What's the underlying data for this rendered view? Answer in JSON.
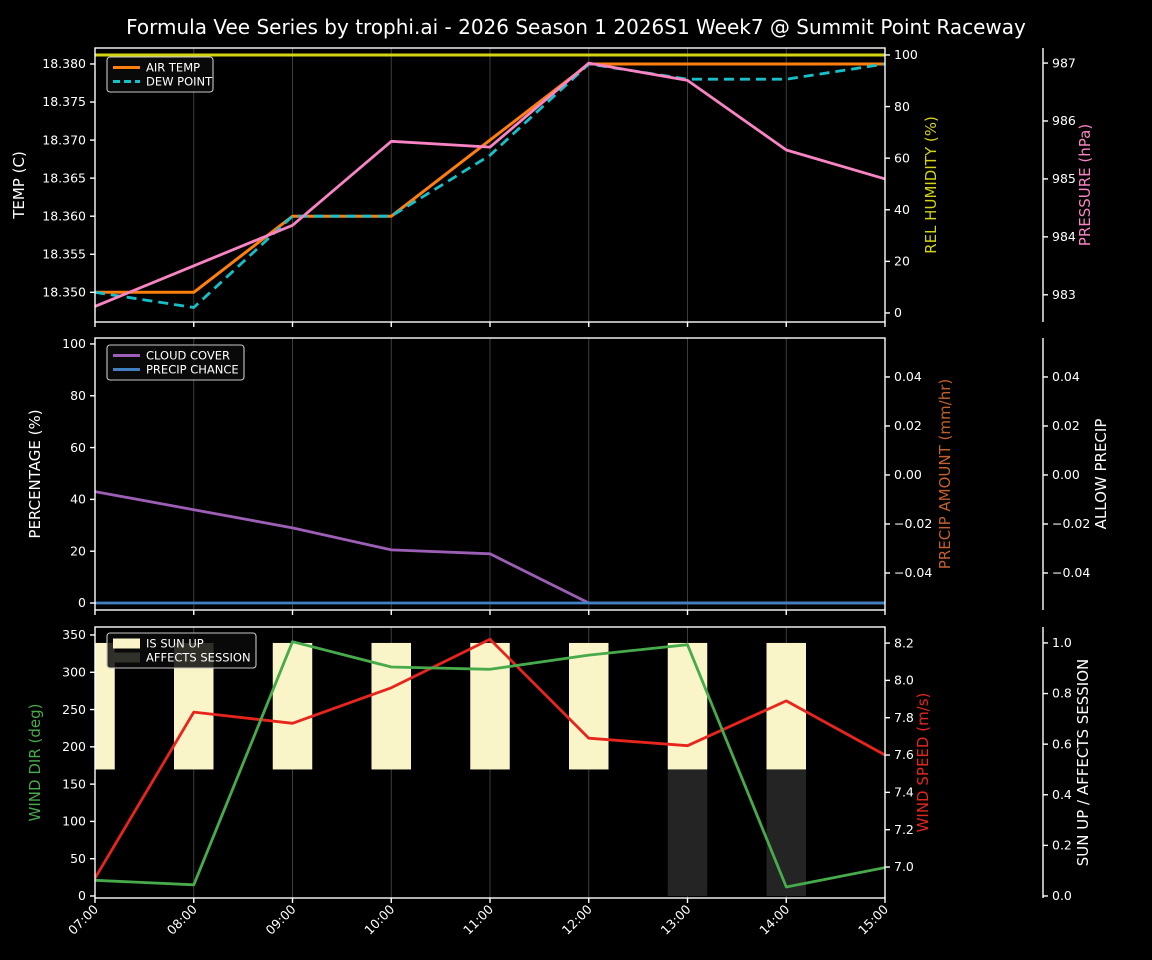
{
  "title": "Formula Vee Series by trophi.ai - 2026 Season 1 2026S1 Week7 @ Summit Point Raceway",
  "x": {
    "hours": [
      7,
      8,
      9,
      10,
      11,
      12,
      13,
      14,
      15
    ],
    "tick_labels": [
      "07:00",
      "08:00",
      "09:00",
      "10:00",
      "11:00",
      "12:00",
      "13:00",
      "14:00",
      "15:00"
    ]
  },
  "chart_data": [
    {
      "type": "line",
      "name": "temperature-panel",
      "left_axis": {
        "id": "temp",
        "label": "TEMP (C)",
        "color": "#ffffff",
        "range": [
          18.3461,
          18.3821
        ],
        "ticks": [
          {
            "v": 18.35,
            "t": "18.350"
          },
          {
            "v": 18.355,
            "t": "18.355"
          },
          {
            "v": 18.36,
            "t": "18.360"
          },
          {
            "v": 18.365,
            "t": "18.365"
          },
          {
            "v": 18.37,
            "t": "18.370"
          },
          {
            "v": 18.375,
            "t": "18.375"
          },
          {
            "v": 18.38,
            "t": "18.380"
          }
        ]
      },
      "right_axes": [
        {
          "id": "hum",
          "label": "REL HUMIDITY (%)",
          "color": "#d2d414",
          "range": [
            -3.5,
            102.7
          ],
          "ticks": [
            {
              "v": 0,
              "t": "0"
            },
            {
              "v": 20,
              "t": "20"
            },
            {
              "v": 40,
              "t": "40"
            },
            {
              "v": 60,
              "t": "60"
            },
            {
              "v": 80,
              "t": "80"
            },
            {
              "v": 100,
              "t": "100"
            }
          ]
        },
        {
          "id": "press",
          "label": "PRESSURE (hPa)",
          "color": "#f884c4",
          "range": [
            982.53,
            987.26
          ],
          "ticks": [
            {
              "v": 983,
              "t": "983"
            },
            {
              "v": 984,
              "t": "984"
            },
            {
              "v": 985,
              "t": "985"
            },
            {
              "v": 986,
              "t": "986"
            },
            {
              "v": 987,
              "t": "987"
            }
          ]
        }
      ],
      "legend": [
        {
          "label": "AIR TEMP",
          "color": "#ff7f0e",
          "kind": "line"
        },
        {
          "label": "DEW POINT",
          "color": "#16c0c9",
          "kind": "dash"
        }
      ],
      "series": [
        {
          "name": "AIR TEMP",
          "axis": "temp",
          "color": "#ff7f0e",
          "dash": null,
          "width": 3,
          "values": [
            18.35,
            18.35,
            18.36,
            18.36,
            18.37,
            18.38,
            18.38,
            18.38,
            18.38
          ]
        },
        {
          "name": "DEW POINT",
          "axis": "temp",
          "color": "#16c0c9",
          "dash": "10,6",
          "width": 2.8,
          "values": [
            18.35,
            18.348,
            18.36,
            18.36,
            18.368,
            18.38,
            18.378,
            18.378,
            18.38
          ]
        },
        {
          "name": "REL HUMIDITY",
          "axis": "hum",
          "color": "#d2d414",
          "dash": null,
          "width": 3,
          "values": [
            100,
            100,
            100,
            100,
            100,
            100,
            100,
            100,
            100
          ]
        },
        {
          "name": "PRESSURE",
          "axis": "press",
          "color": "#f884c4",
          "dash": null,
          "width": 2.8,
          "values": [
            982.8,
            983.5,
            984.2,
            985.65,
            985.55,
            987.0,
            986.7,
            985.5,
            985.0
          ]
        }
      ],
      "bars": []
    },
    {
      "type": "line",
      "name": "precipitation-panel",
      "left_axis": {
        "id": "pct",
        "label": "PERCENTAGE (%)",
        "color": "#ffffff",
        "range": [
          -2.7,
          102.3
        ],
        "ticks": [
          {
            "v": 0,
            "t": "0"
          },
          {
            "v": 20,
            "t": "20"
          },
          {
            "v": 40,
            "t": "40"
          },
          {
            "v": 60,
            "t": "60"
          },
          {
            "v": 80,
            "t": "80"
          },
          {
            "v": 100,
            "t": "100"
          }
        ]
      },
      "right_axes": [
        {
          "id": "pamt",
          "label": "PRECIP AMOUNT (mm/hr)",
          "color": "#c2602c",
          "range": [
            -0.0551,
            0.0559
          ],
          "ticks": [
            {
              "v": 0.04,
              "t": "0.04"
            },
            {
              "v": 0.02,
              "t": "0.02"
            },
            {
              "v": 0,
              "t": "0.00"
            },
            {
              "v": -0.02,
              "t": "−0.02"
            },
            {
              "v": -0.04,
              "t": "−0.04"
            }
          ]
        },
        {
          "id": "allow",
          "label": "ALLOW PRECIP",
          "color": "#ffffff",
          "range": [
            -0.0551,
            0.0559
          ],
          "ticks": [
            {
              "v": 0.04,
              "t": "0.04"
            },
            {
              "v": 0.02,
              "t": "0.02"
            },
            {
              "v": 0,
              "t": "0.00"
            },
            {
              "v": -0.02,
              "t": "−0.02"
            },
            {
              "v": -0.04,
              "t": "−0.04"
            }
          ]
        }
      ],
      "legend": [
        {
          "label": "CLOUD COVER",
          "color": "#9c5fb5",
          "kind": "line"
        },
        {
          "label": "PRECIP CHANCE",
          "color": "#4181bf",
          "kind": "line"
        }
      ],
      "series": [
        {
          "name": "CLOUD COVER",
          "axis": "pct",
          "color": "#9c5fb5",
          "dash": null,
          "width": 2.8,
          "values": [
            43,
            36,
            29,
            20.5,
            19,
            0,
            0,
            0,
            0
          ]
        },
        {
          "name": "PRECIP CHANCE",
          "axis": "pct",
          "color": "#4181bf",
          "dash": null,
          "width": 2.8,
          "values": [
            0,
            0,
            0,
            0,
            0,
            0,
            0,
            0,
            0
          ]
        }
      ],
      "bars": []
    },
    {
      "type": "line",
      "name": "wind-panel",
      "left_axis": {
        "id": "wdir",
        "label": "WIND DIR (deg)",
        "color": "#47aa4b",
        "range": [
          -2.7,
          360.7
        ],
        "ticks": [
          {
            "v": 0,
            "t": "0"
          },
          {
            "v": 50,
            "t": "50"
          },
          {
            "v": 100,
            "t": "100"
          },
          {
            "v": 150,
            "t": "150"
          },
          {
            "v": 200,
            "t": "200"
          },
          {
            "v": 250,
            "t": "250"
          },
          {
            "v": 300,
            "t": "300"
          },
          {
            "v": 350,
            "t": "350"
          }
        ]
      },
      "right_axes": [
        {
          "id": "wspd",
          "label": "WIND SPEED (m/s)",
          "color": "#e8251d",
          "range": [
            6.834,
            8.286
          ],
          "ticks": [
            {
              "v": 7.0,
              "t": "7.0"
            },
            {
              "v": 7.2,
              "t": "7.2"
            },
            {
              "v": 7.4,
              "t": "7.4"
            },
            {
              "v": 7.6,
              "t": "7.6"
            },
            {
              "v": 7.8,
              "t": "7.8"
            },
            {
              "v": 8.0,
              "t": "8.0"
            },
            {
              "v": 8.2,
              "t": "8.2"
            }
          ]
        },
        {
          "id": "sun",
          "label": "SUN UP / AFFECTS SESSION",
          "color": "#ffffff",
          "range": [
            -0.008,
            1.063
          ],
          "ticks": [
            {
              "v": 0.0,
              "t": "0.0"
            },
            {
              "v": 0.2,
              "t": "0.2"
            },
            {
              "v": 0.4,
              "t": "0.4"
            },
            {
              "v": 0.6,
              "t": "0.6"
            },
            {
              "v": 0.8,
              "t": "0.8"
            },
            {
              "v": 1.0,
              "t": "1.0"
            }
          ]
        }
      ],
      "legend": [
        {
          "label": "IS SUN UP",
          "color": "#faf5c9",
          "kind": "patch"
        },
        {
          "label": "AFFECTS SESSION",
          "color": "#31312b",
          "kind": "patch"
        }
      ],
      "series": [
        {
          "name": "WIND SPEED",
          "axis": "wspd",
          "color": "#e8251d",
          "dash": null,
          "width": 2.8,
          "values": [
            6.94,
            7.83,
            7.77,
            7.96,
            8.22,
            7.69,
            7.65,
            7.89,
            7.6
          ]
        },
        {
          "name": "WIND DIR",
          "axis": "wdir",
          "color": "#47aa4b",
          "dash": null,
          "width": 2.8,
          "values": [
            21,
            15,
            341,
            307,
            304,
            323,
            337,
            12,
            38
          ]
        }
      ],
      "bars": [
        {
          "name": "IS SUN UP",
          "axis": "sun",
          "color": "#faf5c9",
          "centers": [
            7,
            8,
            9,
            10,
            11,
            12,
            13,
            14
          ],
          "base": 0.5,
          "top": 1.0,
          "width_hr": 0.4
        },
        {
          "name": "AFFECTS SESSION",
          "axis": "sun",
          "color": "#242424",
          "centers": [
            13,
            14
          ],
          "base": 0.0,
          "top": 0.5,
          "width_hr": 0.4
        }
      ]
    }
  ]
}
